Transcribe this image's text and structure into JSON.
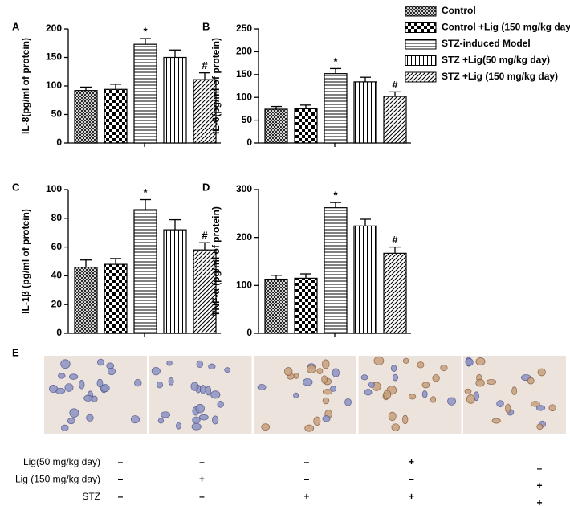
{
  "legend": [
    {
      "name": "Control",
      "pattern": "crosshatch"
    },
    {
      "name": "Control +Lig (150 mg/kg day)",
      "pattern": "checker"
    },
    {
      "name": "STZ-induced Model",
      "pattern": "horizontal"
    },
    {
      "name": "STZ +Lig(50 mg/kg day)",
      "pattern": "vertical"
    },
    {
      "name": "STZ +Lig (150 mg/kg day)",
      "pattern": "diagonal"
    }
  ],
  "chart_data": [
    {
      "type": "bar",
      "panel": "A",
      "ylabel": "IL-8(pg/ml of protein)",
      "categories": [
        null,
        null,
        null,
        null,
        null
      ],
      "values": [
        92,
        94,
        173,
        150,
        111
      ],
      "errors": [
        6,
        9,
        10,
        13,
        12
      ],
      "annotations": [
        null,
        null,
        "*",
        null,
        "#"
      ],
      "ylim": [
        0,
        200
      ],
      "yticks": [
        0,
        50,
        100,
        150,
        200
      ]
    },
    {
      "type": "bar",
      "panel": "B",
      "ylabel": "IL-6(pg/ml of protein)",
      "categories": [
        null,
        null,
        null,
        null,
        null
      ],
      "values": [
        74,
        75,
        152,
        134,
        102
      ],
      "errors": [
        6,
        8,
        11,
        10,
        10
      ],
      "annotations": [
        null,
        null,
        "*",
        null,
        "#"
      ],
      "ylim": [
        0,
        250
      ],
      "yticks": [
        0,
        50,
        100,
        150,
        200,
        250
      ]
    },
    {
      "type": "bar",
      "panel": "C",
      "ylabel": "IL-1β (pg/ml of protein)",
      "categories": [
        null,
        null,
        null,
        null,
        null
      ],
      "values": [
        46,
        48,
        86,
        72,
        58
      ],
      "errors": [
        5,
        4,
        7,
        7,
        5
      ],
      "annotations": [
        null,
        null,
        "*",
        null,
        "#"
      ],
      "ylim": [
        0,
        100
      ],
      "yticks": [
        0,
        20,
        40,
        60,
        80,
        100
      ]
    },
    {
      "type": "bar",
      "panel": "D",
      "ylabel": "TNF-α (pg/ml of protein)",
      "categories": [
        null,
        null,
        null,
        null,
        null
      ],
      "values": [
        113,
        115,
        262,
        224,
        167
      ],
      "errors": [
        8,
        9,
        11,
        14,
        13
      ],
      "annotations": [
        null,
        null,
        "*",
        null,
        "#"
      ],
      "ylim": [
        0,
        300
      ],
      "yticks": [
        0,
        100,
        200,
        300
      ]
    }
  ],
  "panel_e": {
    "label": "E",
    "rows": [
      {
        "label": "Lig(50 mg/kg day)",
        "signs": [
          "–",
          "–",
          "–",
          "+",
          "–"
        ]
      },
      {
        "label": "Lig (150 mg/kg day)",
        "signs": [
          "–",
          "+",
          "–",
          "–",
          "+"
        ]
      },
      {
        "label": "STZ",
        "signs": [
          "–",
          "–",
          "+",
          "+",
          "+"
        ]
      }
    ]
  }
}
